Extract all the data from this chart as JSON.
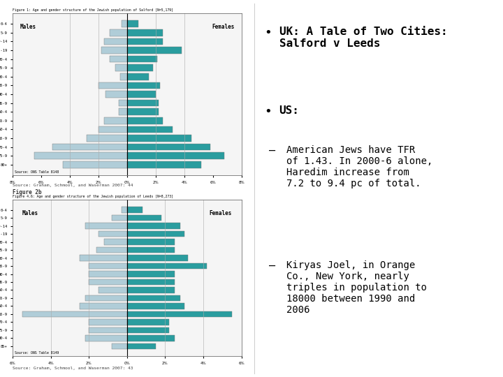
{
  "bg_color": "#ffffff",
  "chart1_title": "Figure 1: Age and gender structure of the Jewish population of Salford [N=5,179]",
  "chart2_title": "Figure 4.6: Age and gender structure of the Jewish population of Leeds [N=8,273]",
  "chart1_source": "Source: ONS Table 8148",
  "chart2_source": "Source: ONS Table 8149",
  "source1_label": "Source: Graham, Schmool, and Waserman 2007: 44",
  "source2_label": "Source: Graham, Schmool, and Waserman 2007: 43",
  "figure2_label": "Figure 2b",
  "salford_ages": [
    "80+",
    "75-9",
    "70-4",
    "65-9",
    "60-4",
    "55-9",
    "50-4",
    "45-9",
    "40-4",
    "35-9",
    "30-4",
    "25-9",
    "20-4",
    "15-19",
    "10-14",
    "5-9",
    "0-4"
  ],
  "salford_males": [
    0.4,
    1.2,
    1.6,
    1.8,
    1.2,
    0.8,
    0.5,
    2.0,
    1.5,
    0.6,
    0.6,
    1.6,
    2.0,
    2.8,
    5.2,
    6.5,
    4.5
  ],
  "salford_females": [
    0.8,
    2.5,
    2.5,
    3.8,
    2.1,
    1.8,
    1.5,
    2.3,
    2.0,
    2.2,
    2.2,
    2.5,
    3.2,
    4.5,
    5.8,
    6.8,
    5.2
  ],
  "leeds_ages": [
    "85+",
    "80-4",
    "75-9",
    "70-4",
    "65-9",
    "60-4",
    "55-9",
    "50-4",
    "45-9",
    "40-4",
    "35-9",
    "30-4",
    "25-9",
    "20-4",
    "15-19",
    "10-14",
    "5-9",
    "0-4"
  ],
  "leeds_males": [
    0.3,
    0.8,
    2.2,
    1.5,
    1.2,
    1.6,
    2.5,
    2.0,
    2.0,
    2.0,
    1.5,
    2.2,
    2.5,
    5.5,
    2.0,
    2.0,
    2.2,
    0.8
  ],
  "leeds_females": [
    0.8,
    1.8,
    2.8,
    3.0,
    2.5,
    2.5,
    3.2,
    4.2,
    2.5,
    2.5,
    2.5,
    2.8,
    3.0,
    5.5,
    2.2,
    2.2,
    2.5,
    1.5
  ],
  "bar_color_male": "#b0cdd8",
  "bar_color_female": "#2a9d9f",
  "bullet1": "UK: A Tale of Two Cities:\nSalford v Leeds",
  "bullet2": "US:",
  "sub1": "American Jews have TFR\nof 1.43. In 2000-6 alone,\nHaredim increase from\n7.2 to 9.4 pc of total.",
  "sub2": "Kiryas Joel, in Orange\nCo., New York, nearly\ntriples in population to\n18000 between 1990 and\n2006"
}
